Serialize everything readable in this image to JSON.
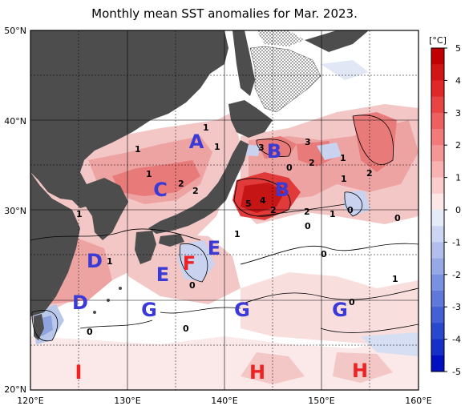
{
  "title": "Monthly mean SST anomalies for Mar. 2023.",
  "colorbar": {
    "unit": "[°C]",
    "ticks": [
      "5",
      "4",
      "3",
      "2",
      "1",
      "0",
      "-1",
      "-2",
      "-3",
      "-4",
      "-5"
    ],
    "warm_color": "#e60000",
    "cold_color": "#0000e6"
  },
  "axes": {
    "lat_labels": [
      "50°N",
      "40°N",
      "30°N",
      "20°N"
    ],
    "lon_labels": [
      "120°E",
      "130°E",
      "140°E",
      "150°E",
      "160°E"
    ]
  },
  "region_labels": [
    {
      "text": "A",
      "color": "#3a3ad6"
    },
    {
      "text": "B",
      "color": "#3a3ad6"
    },
    {
      "text": "B",
      "color": "#3a3ad6"
    },
    {
      "text": "C",
      "color": "#3a3ad6"
    },
    {
      "text": "D",
      "color": "#3a3ad6"
    },
    {
      "text": "D",
      "color": "#3a3ad6"
    },
    {
      "text": "E",
      "color": "#3a3ad6"
    },
    {
      "text": "E",
      "color": "#3a3ad6"
    },
    {
      "text": "F",
      "color": "#ee2222"
    },
    {
      "text": "G",
      "color": "#3a3ad6"
    },
    {
      "text": "G",
      "color": "#3a3ad6"
    },
    {
      "text": "G",
      "color": "#3a3ad6"
    },
    {
      "text": "H",
      "color": "#ee2222"
    },
    {
      "text": "H",
      "color": "#ee2222"
    },
    {
      "text": "I",
      "color": "#ee2222"
    }
  ],
  "contour_labels": [
    "1",
    "1",
    "1",
    "2",
    "1",
    "2",
    "3",
    "3",
    "0",
    "2",
    "1",
    "2",
    "1",
    "5",
    "4",
    "2",
    "2",
    "0",
    "1",
    "0",
    "0",
    "1",
    "1",
    "0",
    "1",
    "0",
    "0",
    "0",
    "1",
    "0"
  ]
}
